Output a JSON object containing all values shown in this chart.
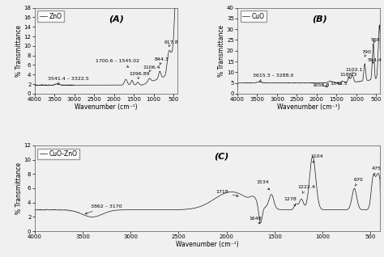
{
  "panel_A": {
    "legend": "ZnO",
    "label": "(A)",
    "xlabel": "Wavenumber (cm⁻¹)",
    "ylabel": "% Transmittance",
    "xlim": [
      4000,
      400
    ],
    "ylim": [
      0,
      18
    ],
    "yticks": [
      0,
      2,
      4,
      6,
      8,
      10,
      12,
      14,
      16,
      18
    ]
  },
  "panel_B": {
    "legend": "CuO",
    "label": "(B)",
    "xlabel": "Wavenumber (cm⁻¹)",
    "ylabel": "% Transmittance",
    "xlim": [
      4000,
      400
    ],
    "ylim": [
      0,
      40
    ],
    "yticks": [
      0,
      5,
      10,
      15,
      20,
      25,
      30,
      35,
      40
    ]
  },
  "panel_C": {
    "legend": "CuO-ZnO",
    "label": "(C)",
    "xlabel": "Wavenumber (cm⁻¹)",
    "ylabel": "% Transmittance",
    "xlim": [
      4000,
      400
    ],
    "ylim": [
      0,
      12
    ],
    "yticks": [
      0,
      2,
      4,
      6,
      8,
      10,
      12
    ]
  },
  "line_color": "#1a1a1a",
  "background_color": "#f0f0f0",
  "font_size_label": 5.5,
  "font_size_axis": 5,
  "font_size_legend": 5.5,
  "font_size_panel_label": 8,
  "font_size_annot": 4.5
}
